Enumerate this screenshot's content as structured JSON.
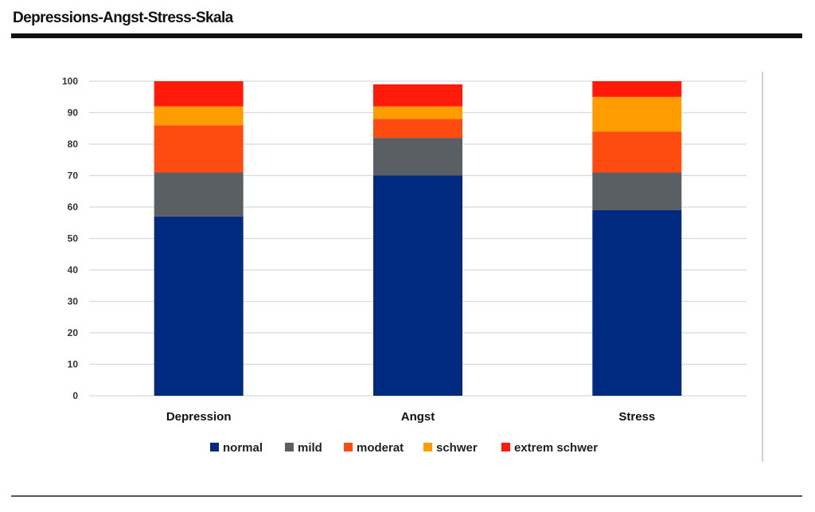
{
  "header": {
    "title": "Depressions-Angst-Stress-Skala"
  },
  "chart_data": {
    "type": "bar",
    "stacked": true,
    "title": "",
    "xlabel": "",
    "ylabel": "",
    "ylim": [
      0,
      100
    ],
    "yticks": [
      0,
      10,
      20,
      30,
      40,
      50,
      60,
      70,
      80,
      90,
      100
    ],
    "grid": true,
    "legend_position": "bottom",
    "categories": [
      "Depression",
      "Angst",
      "Stress"
    ],
    "series": [
      {
        "name": "normal",
        "color": "#002a7f",
        "values": [
          57,
          70,
          59
        ]
      },
      {
        "name": "mild",
        "color": "#595f62",
        "values": [
          14,
          12,
          12
        ]
      },
      {
        "name": "moderat",
        "color": "#ff4b0f",
        "values": [
          15,
          6,
          13
        ]
      },
      {
        "name": "schwer",
        "color": "#ff9d00",
        "values": [
          6,
          4,
          11
        ]
      },
      {
        "name": "extrem schwer",
        "color": "#ff1a0a",
        "values": [
          8,
          7,
          5
        ]
      }
    ]
  }
}
